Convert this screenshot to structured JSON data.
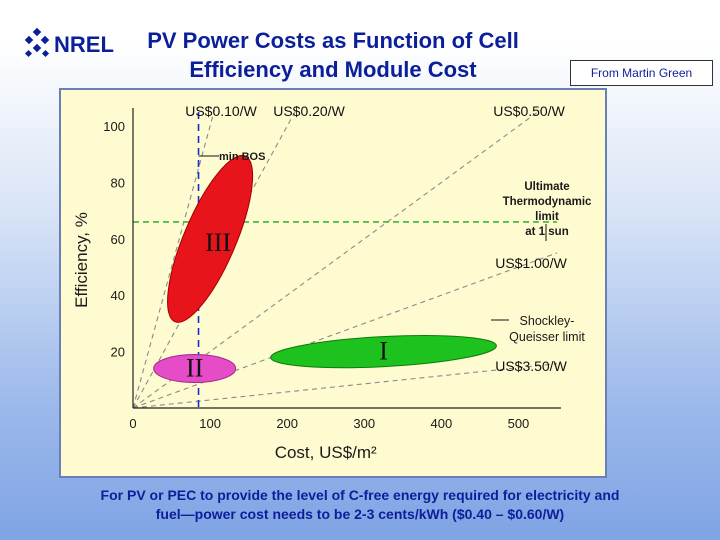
{
  "header": {
    "logo_text": "NREL",
    "title_line1": "PV Power Costs as Function of Cell",
    "title_line2": "Efficiency and Module Cost",
    "credit": "From Martin Green"
  },
  "footer": {
    "line1": "For PV or PEC to provide the level of C-free energy required for electricity and",
    "line2": "fuel—power cost needs to be 2-3 cents/kWh ($0.40 – $0.60/W)"
  },
  "colors": {
    "title": "#0b1f9a",
    "plot_bg": "#fffbd0",
    "red_region": "#e8141c",
    "green_region": "#1ec21e",
    "pink_region": "#e64bc8",
    "thermo_line": "#3cb43c",
    "bos_line": "#1430c8"
  },
  "chart_data": {
    "type": "scatter",
    "xlabel": "Cost, US$/m²",
    "ylabel": "Efficiency, %",
    "xlim": [
      0,
      550
    ],
    "ylim": [
      0,
      105
    ],
    "xticks": [
      "0",
      "100",
      "200",
      "300",
      "400",
      "500"
    ],
    "yticks": [
      "20",
      "40",
      "60",
      "80",
      "100"
    ],
    "cost_lines": [
      {
        "label": "US$0.10/W",
        "price_per_w": 0.1
      },
      {
        "label": "US$0.20/W",
        "price_per_w": 0.2
      },
      {
        "label": "US$0.50/W",
        "price_per_w": 0.5
      },
      {
        "label": "US$1.00/W",
        "price_per_w": 1.0
      },
      {
        "label": "US$3.50/W",
        "price_per_w": 3.5
      }
    ],
    "regions": [
      {
        "label": "III",
        "center": [
          100,
          60
        ],
        "description": "red ellipse"
      },
      {
        "label": "I",
        "center": [
          325,
          20
        ],
        "description": "green ellipse"
      },
      {
        "label": "II",
        "center": [
          80,
          14
        ],
        "description": "pink ellipse"
      }
    ],
    "min_bos_cost": 85,
    "min_bos_label": "min BOS",
    "thermo_limit": {
      "efficiency": 66,
      "label": [
        "Ultimate",
        "Thermodynamic",
        "limit",
        "at 1 sun"
      ]
    },
    "sq_limit": {
      "label": [
        "Shockley-",
        "Queisser limit"
      ]
    }
  }
}
